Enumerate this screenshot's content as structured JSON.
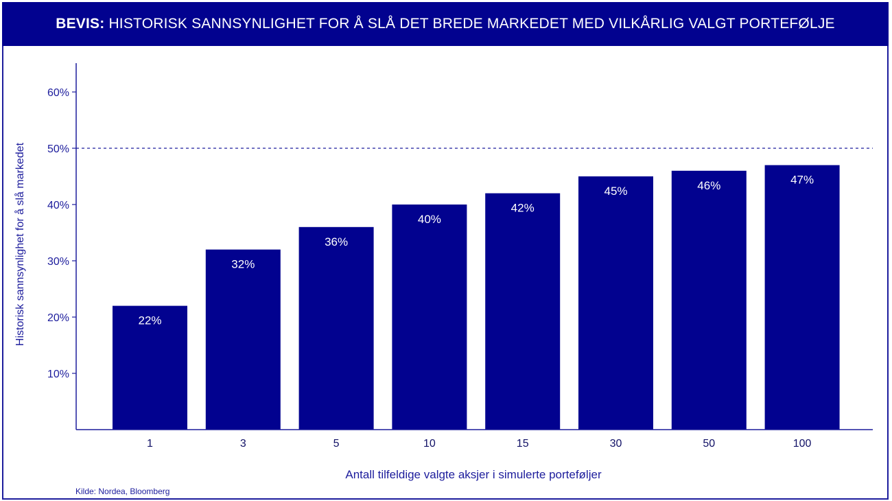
{
  "header": {
    "prefix": "BEVIS:",
    "title": "HISTORISK SANNSYNLIGHET FOR Å SLÅ DET BREDE MARKEDET MED VILKÅRLIG VALGT PORTEFØLJE"
  },
  "source": "Kilde: Nordea, Bloomberg",
  "colors": {
    "bar": "#02028f",
    "axis": "#1c1c9c",
    "text": "#1c1c9c",
    "header_bg": "#02028f",
    "bar_label": "#ffffff"
  },
  "chart_data": {
    "type": "bar",
    "categories": [
      "1",
      "3",
      "5",
      "10",
      "15",
      "30",
      "50",
      "100"
    ],
    "values": [
      22,
      32,
      36,
      40,
      42,
      45,
      46,
      47
    ],
    "value_labels": [
      "22%",
      "32%",
      "36%",
      "40%",
      "42%",
      "45%",
      "46%",
      "47%"
    ],
    "xlabel": "Antall tilfeldige valgte aksjer i simulerte porteføljer",
    "ylabel": "Historisk sannsynlighet for å slå markedet",
    "ylim": [
      0,
      65
    ],
    "yticks": [
      10,
      20,
      30,
      40,
      50,
      60
    ],
    "ytick_labels": [
      "10%",
      "20%",
      "30%",
      "40%",
      "50%",
      "60%"
    ],
    "reference_line": {
      "value": 50,
      "style": "dashed"
    },
    "grid": false,
    "legend": "none"
  }
}
